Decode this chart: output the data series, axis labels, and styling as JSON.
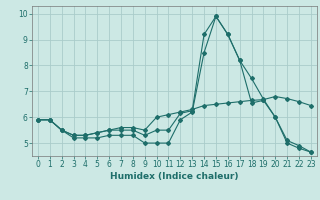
{
  "xlabel": "Humidex (Indice chaleur)",
  "bg_color": "#cce8e4",
  "grid_color": "#aaccca",
  "line_color": "#1e6e6a",
  "xlim": [
    -0.5,
    23.5
  ],
  "ylim": [
    4.5,
    10.3
  ],
  "yticks": [
    5,
    6,
    7,
    8,
    9,
    10
  ],
  "xticks": [
    0,
    1,
    2,
    3,
    4,
    5,
    6,
    7,
    8,
    9,
    10,
    11,
    12,
    13,
    14,
    15,
    16,
    17,
    18,
    19,
    20,
    21,
    22,
    23
  ],
  "line1_x": [
    0,
    1,
    2,
    3,
    4,
    5,
    6,
    7,
    8,
    9,
    10,
    11,
    12,
    13,
    14,
    15,
    16,
    17,
    18,
    19,
    20,
    21,
    22,
    23
  ],
  "line1_y": [
    5.9,
    5.9,
    5.5,
    5.2,
    5.2,
    5.2,
    5.3,
    5.3,
    5.3,
    5.0,
    5.0,
    5.0,
    5.9,
    6.2,
    8.5,
    9.9,
    9.2,
    8.2,
    7.5,
    6.7,
    6.0,
    5.1,
    4.9,
    4.65
  ],
  "line2_x": [
    0,
    1,
    2,
    3,
    4,
    5,
    6,
    7,
    8,
    9,
    10,
    11,
    12,
    13,
    14,
    15,
    16,
    17,
    18,
    19,
    20,
    21,
    22,
    23
  ],
  "line2_y": [
    5.9,
    5.9,
    5.5,
    5.3,
    5.3,
    5.4,
    5.5,
    5.5,
    5.5,
    5.3,
    5.5,
    5.5,
    6.15,
    6.25,
    9.2,
    9.9,
    9.2,
    8.2,
    6.55,
    6.65,
    6.0,
    5.0,
    4.8,
    4.65
  ],
  "line3_x": [
    0,
    1,
    2,
    3,
    4,
    5,
    6,
    7,
    8,
    9,
    10,
    11,
    12,
    13,
    14,
    15,
    16,
    17,
    18,
    19,
    20,
    21,
    22,
    23
  ],
  "line3_y": [
    5.9,
    5.9,
    5.5,
    5.3,
    5.3,
    5.4,
    5.5,
    5.6,
    5.6,
    5.5,
    6.0,
    6.1,
    6.2,
    6.3,
    6.45,
    6.5,
    6.55,
    6.6,
    6.65,
    6.68,
    6.8,
    6.72,
    6.6,
    6.45
  ]
}
